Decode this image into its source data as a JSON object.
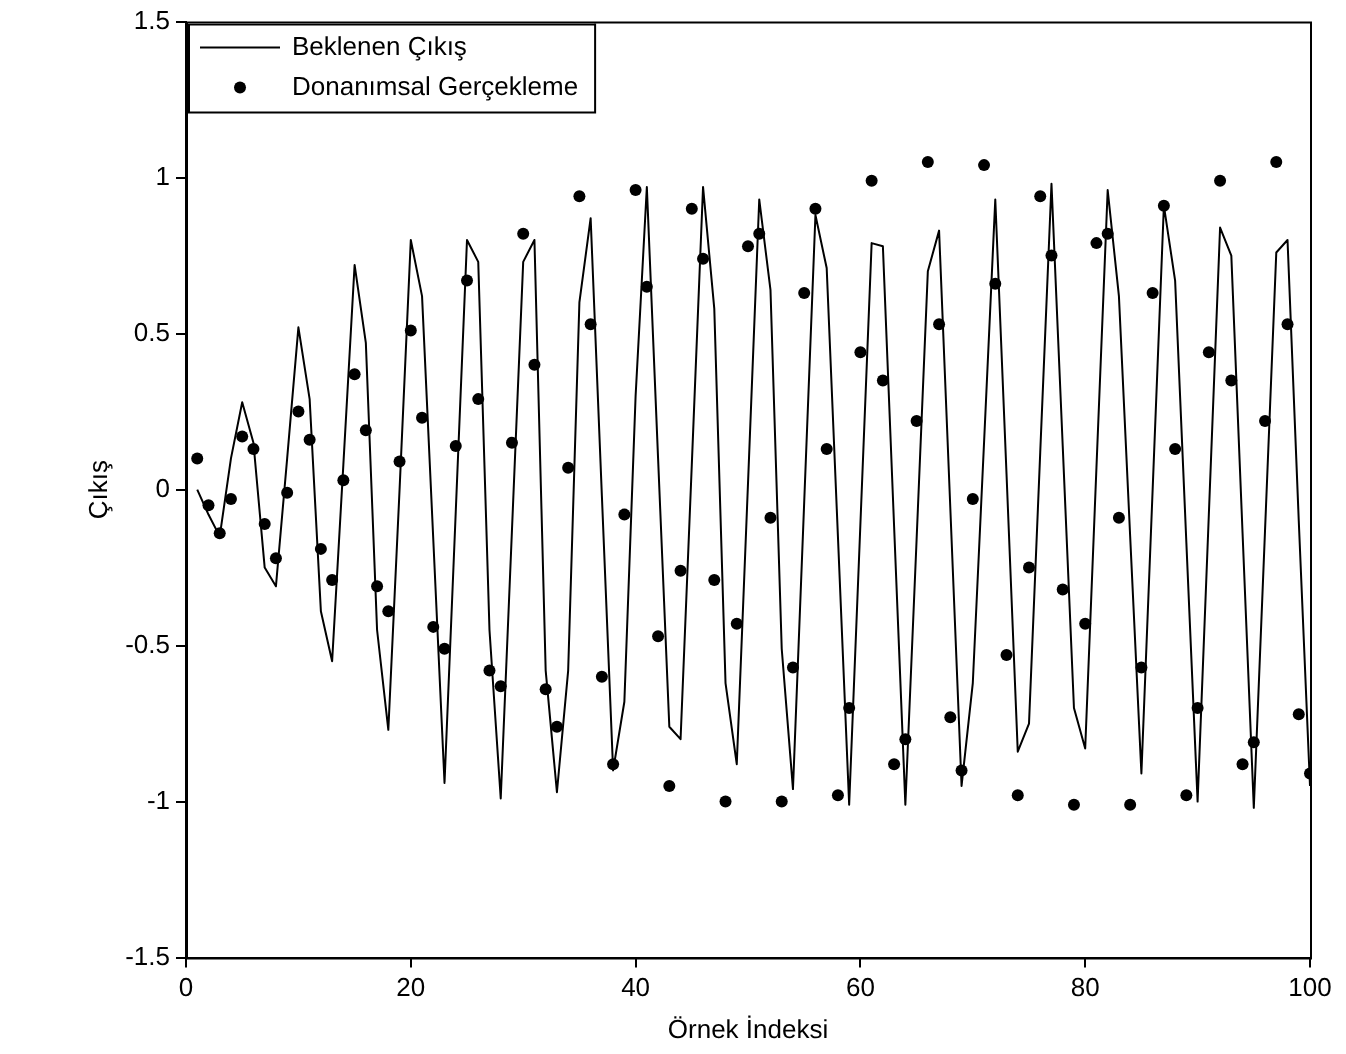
{
  "chart_data": {
    "type": "line",
    "xlabel": "Örnek İndeksi",
    "ylabel": "Çıkış",
    "x": [
      1,
      2,
      3,
      4,
      5,
      6,
      7,
      8,
      9,
      10,
      11,
      12,
      13,
      14,
      15,
      16,
      17,
      18,
      19,
      20,
      21,
      22,
      23,
      24,
      25,
      26,
      27,
      28,
      29,
      30,
      31,
      32,
      33,
      34,
      35,
      36,
      37,
      38,
      39,
      40,
      41,
      42,
      43,
      44,
      45,
      46,
      47,
      48,
      49,
      50,
      51,
      52,
      53,
      54,
      55,
      56,
      57,
      58,
      59,
      60,
      61,
      62,
      63,
      64,
      65,
      66,
      67,
      68,
      69,
      70,
      71,
      72,
      73,
      74,
      75,
      76,
      77,
      78,
      79,
      80,
      81,
      82,
      83,
      84,
      85,
      86,
      87,
      88,
      89,
      90,
      91,
      92,
      93,
      94,
      95,
      96,
      97,
      98,
      99,
      100
    ],
    "series": [
      {
        "name": "Beklenen Çıkış",
        "color": "#000000",
        "marker": "none",
        "line_style": "solid",
        "values": [
          0.0,
          -0.08,
          -0.15,
          0.1,
          0.28,
          0.15,
          -0.25,
          -0.31,
          0.1,
          0.52,
          0.29,
          -0.39,
          -0.55,
          0.08,
          0.72,
          0.47,
          -0.45,
          -0.77,
          0.0,
          0.8,
          0.62,
          -0.16,
          -0.94,
          -0.07,
          0.8,
          0.73,
          -0.45,
          -0.99,
          -0.13,
          0.73,
          0.8,
          -0.58,
          -0.97,
          -0.58,
          0.6,
          0.87,
          -0.02,
          -0.9,
          -0.68,
          0.3,
          0.97,
          0.1,
          -0.76,
          -0.8,
          0.08,
          0.97,
          0.58,
          -0.62,
          -0.88,
          0.02,
          0.93,
          0.64,
          -0.51,
          -0.96,
          -0.04,
          0.88,
          0.71,
          -0.15,
          -1.01,
          -0.11,
          0.79,
          0.78,
          -0.12,
          -1.01,
          -0.16,
          0.7,
          0.83,
          -0.06,
          -0.95,
          -0.62,
          0.15,
          0.93,
          0.05,
          -0.84,
          -0.75,
          0.12,
          0.98,
          0.14,
          -0.7,
          -0.83,
          0.07,
          0.96,
          0.62,
          -0.15,
          -0.91,
          0.0,
          0.91,
          0.67,
          -0.17,
          -1.0,
          -0.08,
          0.84,
          0.75,
          -0.14,
          -1.02,
          -0.13,
          0.76,
          0.8,
          -0.1,
          -0.95
        ]
      },
      {
        "name": "Donanımsal Gerçekleme",
        "type": "scatter",
        "color": "#000000",
        "marker": "circle",
        "values": [
          0.1,
          -0.05,
          -0.14,
          -0.03,
          0.17,
          0.13,
          -0.11,
          -0.22,
          -0.01,
          0.25,
          0.16,
          -0.19,
          -0.29,
          0.03,
          0.37,
          0.19,
          -0.31,
          -0.39,
          0.09,
          0.51,
          0.23,
          -0.44,
          -0.51,
          0.14,
          0.67,
          0.29,
          -0.58,
          -0.63,
          0.15,
          0.82,
          0.4,
          -0.64,
          -0.76,
          0.07,
          0.94,
          0.53,
          -0.6,
          -0.88,
          -0.08,
          0.96,
          0.65,
          -0.47,
          -0.95,
          -0.26,
          0.9,
          0.74,
          -0.29,
          -1.0,
          -0.43,
          0.78,
          0.82,
          -0.09,
          -1.0,
          -0.57,
          0.63,
          0.9,
          0.13,
          -0.98,
          -0.7,
          0.44,
          0.99,
          0.35,
          -0.88,
          -0.8,
          0.22,
          1.05,
          0.53,
          -0.73,
          -0.9,
          -0.03,
          1.04,
          0.66,
          -0.53,
          -0.98,
          -0.25,
          0.94,
          0.75,
          -0.32,
          -1.01,
          -0.43,
          0.79,
          0.82,
          -0.09,
          -1.01,
          -0.57,
          0.63,
          0.91,
          0.13,
          -0.98,
          -0.7,
          0.44,
          0.99,
          0.35,
          -0.88,
          -0.81,
          0.22,
          1.05,
          0.53,
          -0.72,
          -0.91
        ]
      }
    ],
    "xlim": [
      0,
      100
    ],
    "xticks": [
      0,
      20,
      40,
      60,
      80,
      100
    ],
    "ylim": [
      -1.5,
      1.5
    ],
    "yticks": [
      -1.5,
      -1,
      -0.5,
      0,
      0.5,
      1,
      1.5
    ],
    "grid": false,
    "legend": "top left"
  }
}
